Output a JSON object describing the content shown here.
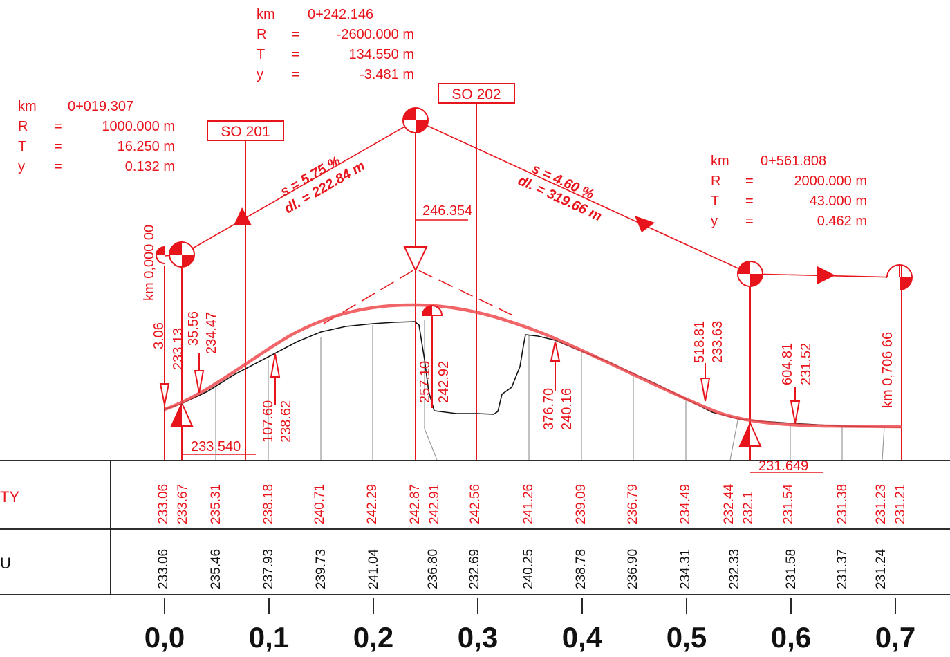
{
  "colors": {
    "design": "#e8141b",
    "terrain": "#111111",
    "grid": "#9a9a9a"
  },
  "vertical_curves": [
    {
      "km_label": "km",
      "km_value": "0+019.307",
      "r_label": "R",
      "r_value": "1000.000 m",
      "t_label": "T",
      "t_value": "16.250 m",
      "y_label": "y",
      "y_value": "0.132 m",
      "eq": "="
    },
    {
      "km_label": "km",
      "km_value": "0+242.146",
      "r_label": "R",
      "r_value": "-2600.000 m",
      "t_label": "T",
      "t_value": "134.550 m",
      "y_label": "y",
      "y_value": "-3.481 m",
      "eq": "="
    },
    {
      "km_label": "km",
      "km_value": "0+561.808",
      "r_label": "R",
      "r_value": "2000.000 m",
      "t_label": "T",
      "t_value": "43.000 m",
      "y_label": "y",
      "y_value": "0.462 m",
      "eq": "="
    }
  ],
  "objects": [
    {
      "label": "SO 201"
    },
    {
      "label": "SO 202"
    }
  ],
  "grades": [
    {
      "slope": "s = 5.75 %",
      "length": "dl. = 222.84 m"
    },
    {
      "slope": "s = 4.60 %",
      "length": "dl. = 319.66 m"
    }
  ],
  "elevation_labels": {
    "apex": "246.354",
    "lower": "233.540",
    "sag": "231.649"
  },
  "km_marks": {
    "start": "km 0,000 00",
    "end": "km 0,706 66"
  },
  "point_labels": [
    {
      "station": "3.06",
      "elev": "233.13"
    },
    {
      "station": "35.56",
      "elev": "234.47"
    },
    {
      "station": "107.60",
      "elev": "238.62"
    },
    {
      "station": "257.10",
      "elev": "242.92"
    },
    {
      "station": "376.70",
      "elev": "240.16"
    },
    {
      "station": "518.81",
      "elev": "233.63"
    },
    {
      "station": "604.81",
      "elev": "231.52"
    }
  ],
  "table": {
    "design_row_label": "TY",
    "terrain_row_label": "U",
    "design_values": [
      "233.06",
      "233.67",
      "235.31",
      "238.18",
      "240.71",
      "242.29",
      "242.87",
      "242.91",
      "242.56",
      "241.26",
      "239.09",
      "236.79",
      "234.49",
      "232.44",
      "232.1",
      "231.54",
      "231.38",
      "231.23",
      "231.21"
    ],
    "terrain_values": [
      "233.06",
      "235.46",
      "237.93",
      "239.73",
      "241.04",
      "236.80",
      "232.69",
      "240.25",
      "238.78",
      "236.90",
      "234.31",
      "232.33",
      "231.58",
      "231.37",
      "231.24"
    ]
  },
  "axis_ticks": [
    "0,0",
    "0,1",
    "0,2",
    "0,3",
    "0,4",
    "0,5",
    "0,6",
    "0,7"
  ]
}
